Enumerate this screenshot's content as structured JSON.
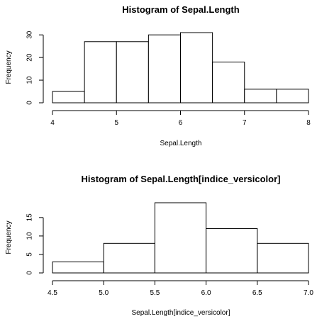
{
  "chart_data": [
    {
      "type": "bar",
      "title": "Histogram of Sepal.Length",
      "xlabel": "Sepal.Length",
      "ylabel": "Frequency",
      "bin_edges": [
        4,
        4.5,
        5,
        5.5,
        6,
        6.5,
        7,
        7.5,
        8
      ],
      "values": [
        5,
        27,
        27,
        30,
        31,
        18,
        6,
        6
      ],
      "xlim": [
        4,
        8
      ],
      "ylim": [
        0,
        31
      ],
      "x_ticks": [
        4,
        5,
        6,
        7,
        8
      ],
      "x_tick_labels": [
        "4",
        "5",
        "6",
        "7",
        "8"
      ],
      "y_ticks": [
        0,
        10,
        20,
        30
      ],
      "y_tick_labels": [
        "0",
        "10",
        "20",
        "30"
      ],
      "grid": false
    },
    {
      "type": "bar",
      "title": "Histogram of Sepal.Length[indice_versicolor]",
      "xlabel": "Sepal.Length[indice_versicolor]",
      "ylabel": "Frequency",
      "bin_edges": [
        4.5,
        5.0,
        5.5,
        6.0,
        6.5,
        7.0
      ],
      "values": [
        3,
        8,
        19,
        12,
        8
      ],
      "xlim": [
        4.5,
        7.0
      ],
      "ylim": [
        0,
        19
      ],
      "x_ticks": [
        4.5,
        5.0,
        5.5,
        6.0,
        6.5,
        7.0
      ],
      "x_tick_labels": [
        "4.5",
        "5.0",
        "5.5",
        "6.0",
        "6.5",
        "7.0"
      ],
      "y_ticks": [
        0,
        5,
        10,
        15
      ],
      "y_tick_labels": [
        "0",
        "5",
        "10",
        "15"
      ],
      "grid": false
    }
  ]
}
